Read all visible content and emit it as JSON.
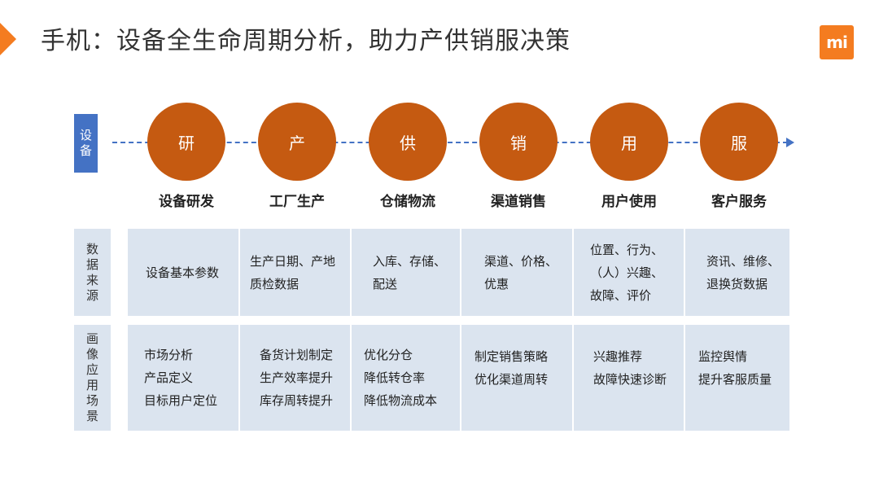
{
  "slide": {
    "title": "手机：设备全生命周期分析，助力产供销服决策",
    "logo_text": "mi"
  },
  "timeline": {
    "device_label": "设\n备",
    "stages": [
      {
        "char": "研",
        "name": "设备研发"
      },
      {
        "char": "产",
        "name": "工厂生产"
      },
      {
        "char": "供",
        "name": "仓储物流"
      },
      {
        "char": "销",
        "name": "渠道销售"
      },
      {
        "char": "用",
        "name": "用户使用"
      },
      {
        "char": "服",
        "name": "客户服务"
      }
    ]
  },
  "table": {
    "rows": [
      {
        "label": "数\n据\n来\n源",
        "cells": [
          "设备基本参数",
          "生产日期、产地\n质检数据",
          "入库、存储、\n配送",
          "渠道、价格、\n优惠",
          "位置、行为、\n（人）兴趣、\n故障、评价",
          "资讯、维修、\n退换货数据"
        ]
      },
      {
        "label": "画\n像\n应\n用\n场\n景",
        "cells": [
          "市场分析\n产品定义\n目标用户定位",
          "备货计划制定\n生产效率提升\n库存周转提升",
          "优化分仓\n降低转仓率\n降低物流成本",
          "制定销售策略\n优化渠道周转",
          "兴趣推荐\n故障快速诊断",
          "监控舆情\n提升客服质量"
        ]
      }
    ]
  },
  "colors": {
    "accent": "#f47c20",
    "stage_circle": "#c55a11",
    "timeline": "#4472c4",
    "cell_bg": "#dbe4ef"
  }
}
